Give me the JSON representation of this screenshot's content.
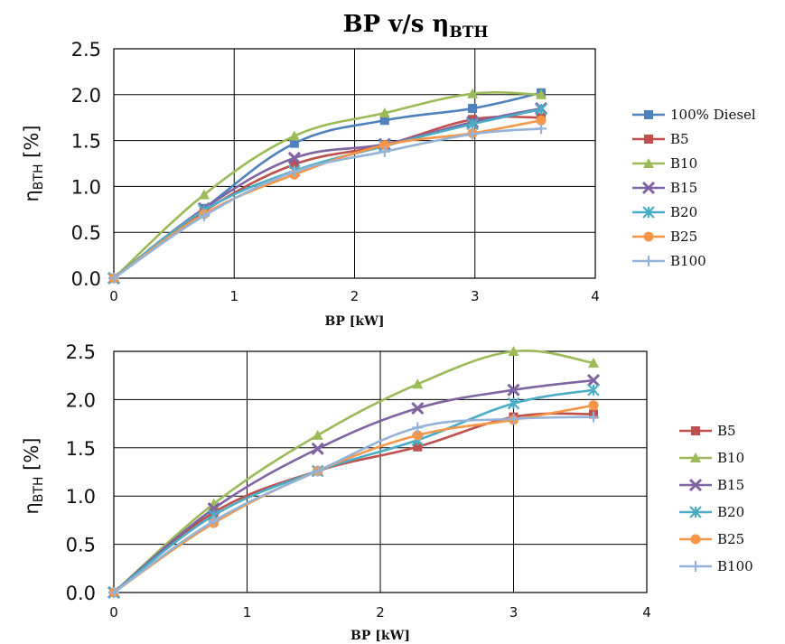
{
  "chart_data": [
    {
      "type": "line",
      "title": "BP v/s η",
      "title_sub": "BTH",
      "xlabel": "BP [kW]",
      "ylabel_main": "η",
      "ylabel_sub": "BTH",
      "ylabel_unit": " [%]",
      "xlim": [
        0,
        4
      ],
      "ylim": [
        0,
        2.5
      ],
      "xticks": [
        0,
        1,
        2,
        3,
        4
      ],
      "xtick_labels": [
        "0",
        "1",
        "2",
        "3",
        "4"
      ],
      "yticks": [
        0,
        0.5,
        1,
        1.5,
        2,
        2.5
      ],
      "ytick_labels": [
        "0.0",
        "0.5",
        "1.0",
        "1.5",
        "2.0",
        "2.5"
      ],
      "grid": true,
      "legend_position": "right",
      "series": [
        {
          "name": "100% Diesel",
          "color": "#4f81bd",
          "marker": "square",
          "x": [
            0,
            0.75,
            1.5,
            2.25,
            2.98,
            3.55
          ],
          "y": [
            0.0,
            0.76,
            1.47,
            1.72,
            1.85,
            2.02
          ]
        },
        {
          "name": "B5",
          "color": "#c0504d",
          "marker": "square",
          "x": [
            0,
            0.75,
            1.5,
            2.25,
            2.98,
            3.55
          ],
          "y": [
            0.0,
            0.73,
            1.24,
            1.45,
            1.73,
            1.75
          ]
        },
        {
          "name": "B10",
          "color": "#9bbb59",
          "marker": "triangle",
          "x": [
            0,
            0.75,
            1.5,
            2.25,
            2.98,
            3.55
          ],
          "y": [
            0.0,
            0.91,
            1.55,
            1.8,
            2.01,
            2.0
          ]
        },
        {
          "name": "B15",
          "color": "#8064a2",
          "marker": "x-star",
          "x": [
            0,
            0.75,
            1.5,
            2.25,
            2.98,
            3.55
          ],
          "y": [
            0.0,
            0.76,
            1.31,
            1.46,
            1.7,
            1.85
          ]
        },
        {
          "name": "B20",
          "color": "#4bacc6",
          "marker": "asterisk",
          "x": [
            0,
            0.75,
            1.5,
            2.25,
            2.98,
            3.55
          ],
          "y": [
            0.0,
            0.74,
            1.17,
            1.44,
            1.68,
            1.84
          ]
        },
        {
          "name": "B25",
          "color": "#f79646",
          "marker": "circle",
          "x": [
            0,
            0.75,
            1.5,
            2.25,
            2.98,
            3.55
          ],
          "y": [
            0.0,
            0.7,
            1.13,
            1.45,
            1.58,
            1.72
          ]
        },
        {
          "name": "B100",
          "color": "#95b3d7",
          "marker": "plus",
          "x": [
            0,
            0.75,
            1.5,
            2.25,
            2.98,
            3.55
          ],
          "y": [
            0.0,
            0.68,
            1.16,
            1.38,
            1.57,
            1.63
          ]
        }
      ]
    },
    {
      "type": "line",
      "title": "",
      "xlabel": "BP [kW]",
      "ylabel_main": "η",
      "ylabel_sub": "BTH",
      "ylabel_unit": " [%]",
      "xlim": [
        0,
        4
      ],
      "ylim": [
        0,
        2.5
      ],
      "xticks": [
        0,
        1,
        2,
        3,
        4
      ],
      "xtick_labels": [
        "0",
        "1",
        "2",
        "3",
        "4"
      ],
      "yticks": [
        0,
        0.5,
        1,
        1.5,
        2,
        2.5
      ],
      "ytick_labels": [
        "0.0",
        "0.5",
        "1.0",
        "1.5",
        "2.0",
        "2.5"
      ],
      "grid": true,
      "legend_position": "right",
      "series": [
        {
          "name": "B5",
          "color": "#c0504d",
          "marker": "square",
          "x": [
            0,
            0.75,
            1.53,
            2.28,
            3.0,
            3.6
          ],
          "y": [
            0.0,
            0.83,
            1.26,
            1.51,
            1.82,
            1.85
          ]
        },
        {
          "name": "B10",
          "color": "#9bbb59",
          "marker": "triangle",
          "x": [
            0,
            0.75,
            1.53,
            2.28,
            3.0,
            3.6
          ],
          "y": [
            0.0,
            0.92,
            1.63,
            2.16,
            2.5,
            2.38
          ]
        },
        {
          "name": "B15",
          "color": "#8064a2",
          "marker": "x-star",
          "x": [
            0,
            0.75,
            1.53,
            2.28,
            3.0,
            3.6
          ],
          "y": [
            0.0,
            0.87,
            1.49,
            1.91,
            2.1,
            2.2
          ]
        },
        {
          "name": "B20",
          "color": "#4bacc6",
          "marker": "asterisk",
          "x": [
            0,
            0.75,
            1.53,
            2.28,
            3.0,
            3.6
          ],
          "y": [
            0.0,
            0.8,
            1.26,
            1.58,
            1.96,
            2.1
          ]
        },
        {
          "name": "B25",
          "color": "#f79646",
          "marker": "circle",
          "x": [
            0,
            0.75,
            1.53,
            2.28,
            3.0,
            3.6
          ],
          "y": [
            0.0,
            0.72,
            1.26,
            1.63,
            1.79,
            1.94
          ]
        },
        {
          "name": "B100",
          "color": "#95b3d7",
          "marker": "plus",
          "x": [
            0,
            0.75,
            1.53,
            2.28,
            3.0,
            3.6
          ],
          "y": [
            0.0,
            0.74,
            1.26,
            1.71,
            1.8,
            1.82
          ]
        }
      ]
    }
  ]
}
